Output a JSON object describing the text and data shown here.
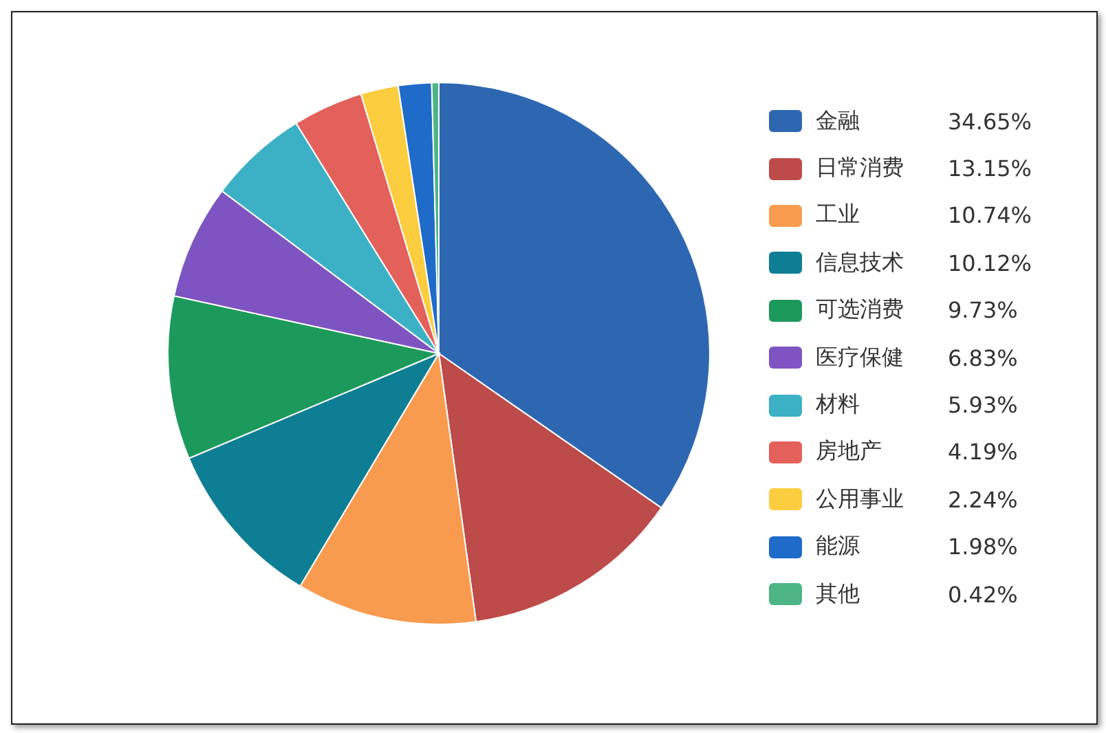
{
  "chart_data": {
    "type": "pie",
    "categories": [
      "金融",
      "日常消费",
      "工业",
      "信息技术",
      "可选消费",
      "医疗保健",
      "材料",
      "房地产",
      "公用事业",
      "能源",
      "其他"
    ],
    "values": [
      34.65,
      13.15,
      10.74,
      10.12,
      9.73,
      6.83,
      5.93,
      4.19,
      2.24,
      1.98,
      0.42
    ],
    "value_labels": [
      "34.65%",
      "13.15%",
      "10.74%",
      "10.12%",
      "9.73%",
      "6.83%",
      "5.93%",
      "4.19%",
      "2.24%",
      "1.98%",
      "0.42%"
    ],
    "colors": [
      "#2e67b1",
      "#bd4b4a",
      "#f99b4e",
      "#0e7e94",
      "#1c9a5c",
      "#7d54c2",
      "#3cb1c6",
      "#e4605a",
      "#fccd3f",
      "#1e6bc9",
      "#4db585"
    ],
    "legend": "right"
  }
}
